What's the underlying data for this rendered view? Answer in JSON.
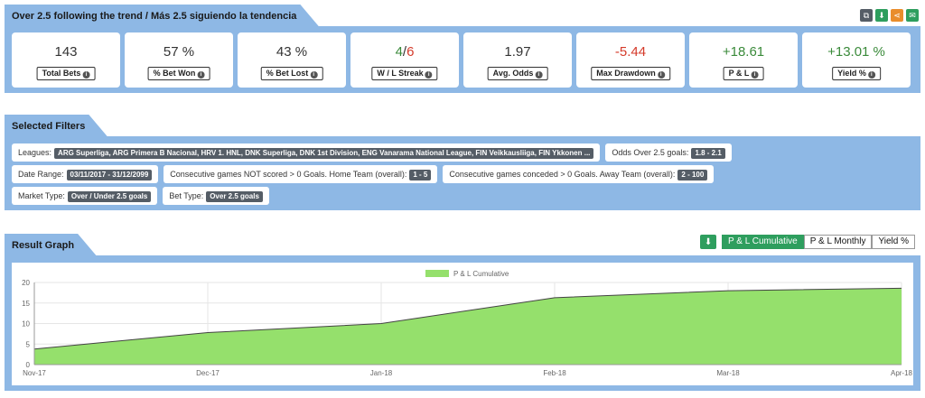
{
  "header": {
    "title": "Over 2.5 following the trend / Más 2.5 siguiendo la tendencia",
    "icons": [
      "copy-icon",
      "download-icon",
      "share-icon",
      "email-icon"
    ],
    "icon_colors": [
      "#555d66",
      "#2e9e5e",
      "#e98d2c",
      "#2e9e5e"
    ]
  },
  "stats": [
    {
      "value": "143",
      "label": "Total Bets",
      "color": "default"
    },
    {
      "value": "57 %",
      "label": "% Bet Won",
      "color": "default"
    },
    {
      "value": "43 %",
      "label": "% Bet Lost",
      "color": "default"
    },
    {
      "value_won": "4",
      "value_sep": "/",
      "value_lost": "6",
      "label": "W / L Streak",
      "color": "split"
    },
    {
      "value": "1.97",
      "label": "Avg. Odds",
      "color": "default"
    },
    {
      "value": "-5.44",
      "label": "Max Drawdown",
      "color": "red"
    },
    {
      "value": "+18.61",
      "label": "P & L",
      "color": "green"
    },
    {
      "value": "+13.01 %",
      "label": "Yield %",
      "color": "green"
    }
  ],
  "filters": {
    "title": "Selected Filters",
    "leagues_label": "Leagues:",
    "leagues_value": "ARG Superliga, ARG Primera B Nacional, HRV 1. HNL, DNK Superliga, DNK 1st Division, ENG Vanarama National League, FIN Veikkausliiga, FIN Ykkonen ...",
    "odds_label": "Odds Over 2.5 goals:",
    "odds_value": "1.8 - 2.1",
    "date_label": "Date Range:",
    "date_value": "03/11/2017 - 31/12/2099",
    "not_scored_label": "Consecutive games NOT scored > 0 Goals. Home Team (overall):",
    "not_scored_value": "1 - 5",
    "conceded_label": "Consecutive games conceded > 0 Goals. Away Team (overall):",
    "conceded_value": "2 - 100",
    "market_label": "Market Type:",
    "market_value": "Over / Under 2.5 goals",
    "bet_label": "Bet Type:",
    "bet_value": "Over 2.5 goals"
  },
  "graph": {
    "title": "Result Graph",
    "tabs": [
      "P & L Cumulative",
      "P & L Monthly",
      "Yield %"
    ],
    "active_tab": 0
  },
  "chart_data": {
    "type": "area",
    "x": [
      "Nov-17",
      "Dec-17",
      "Jan-18",
      "Feb-18",
      "Mar-18",
      "Apr-18"
    ],
    "series": [
      {
        "name": "P & L Cumulative",
        "values": [
          3.8,
          7.8,
          10.0,
          16.3,
          18.0,
          18.61
        ]
      }
    ],
    "ylim": [
      0,
      20
    ],
    "yticks": [
      0,
      5,
      10,
      15,
      20
    ],
    "legend": "top-center",
    "grid": true,
    "fill_color": "#95e06c",
    "line_color": "#444444"
  }
}
